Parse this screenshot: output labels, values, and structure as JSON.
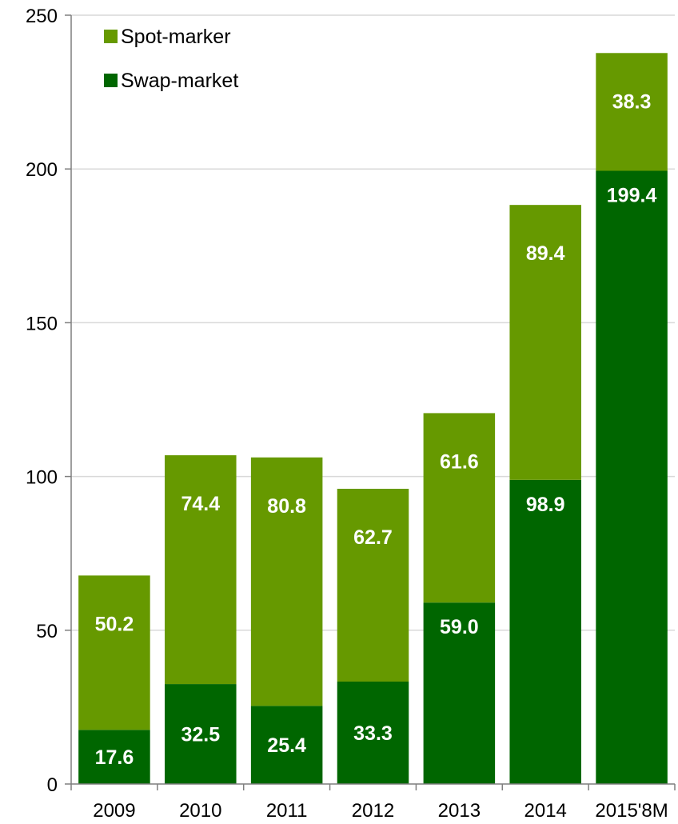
{
  "chart_data": {
    "type": "bar",
    "stacked": true,
    "categories": [
      "2009",
      "2010",
      "2011",
      "2012",
      "2013",
      "2014",
      "2015'8M"
    ],
    "series": [
      {
        "name": "Swap-market",
        "color": "#006600",
        "values": [
          17.6,
          32.5,
          25.4,
          33.3,
          59.0,
          98.9,
          199.4
        ]
      },
      {
        "name": "Spot-marker",
        "color": "#669900",
        "values": [
          50.2,
          74.4,
          80.8,
          62.7,
          61.6,
          89.4,
          38.3
        ]
      }
    ],
    "value_labels": {
      "Swap-market": [
        "17.6",
        "32.5",
        "25.4",
        "33.3",
        "59.0",
        "98.9",
        "199.4"
      ],
      "Spot-marker": [
        "50.2",
        "74.4",
        "80.8",
        "62.7",
        "61.6",
        "89.4",
        "38.3"
      ]
    },
    "ylim": [
      0,
      250
    ],
    "yticks": [
      0,
      50,
      100,
      150,
      200,
      250
    ],
    "ytick_labels": [
      "0",
      "50",
      "100",
      "150",
      "200",
      "250"
    ],
    "grid": true,
    "grid_color": "#d9d9d9",
    "legend": {
      "placement": "top-left",
      "order": [
        "Spot-marker",
        "Swap-market"
      ]
    }
  }
}
